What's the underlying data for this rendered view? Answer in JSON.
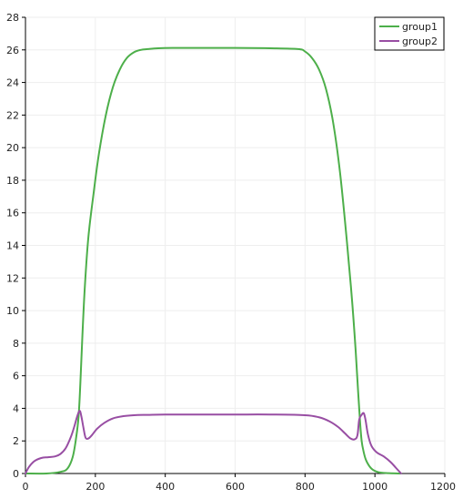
{
  "chart_data": {
    "type": "line",
    "title": "",
    "xlabel": "",
    "ylabel": "",
    "xlim": [
      0,
      1200
    ],
    "ylim": [
      0,
      28
    ],
    "x_ticks": [
      0,
      200,
      400,
      600,
      800,
      1000,
      1200
    ],
    "y_ticks": [
      0,
      2,
      4,
      6,
      8,
      10,
      12,
      14,
      16,
      18,
      20,
      22,
      24,
      26,
      28
    ],
    "x_tick_labels": [
      "0",
      "200",
      "400",
      "600",
      "800",
      "1000",
      "1200"
    ],
    "y_tick_labels": [
      "0",
      "2",
      "4",
      "6",
      "8",
      "10",
      "12",
      "14",
      "16",
      "18",
      "20",
      "22",
      "24",
      "26",
      "28"
    ],
    "grid": true,
    "legend_position": "top-right",
    "series": [
      {
        "name": "group1",
        "color": "#4daf4a",
        "x": [
          0,
          60,
          100,
          120,
          135,
          145,
          152,
          157,
          163,
          170,
          180,
          195,
          210,
          230,
          250,
          270,
          290,
          310,
          330,
          350,
          380,
          420,
          500,
          600,
          700,
          780,
          800,
          820,
          840,
          860,
          880,
          900,
          920,
          935,
          945,
          952,
          958,
          962,
          967,
          975,
          990,
          1010,
          1040,
          1075
        ],
        "y": [
          0,
          0,
          0.1,
          0.3,
          1.0,
          2.2,
          3.5,
          5.5,
          8.5,
          11.5,
          14.5,
          17.2,
          19.6,
          22.0,
          23.7,
          24.8,
          25.5,
          25.85,
          26.0,
          26.05,
          26.1,
          26.12,
          26.12,
          26.12,
          26.1,
          26.05,
          25.9,
          25.5,
          24.8,
          23.6,
          21.6,
          18.5,
          14.2,
          10.5,
          7.5,
          5.0,
          3.0,
          2.0,
          1.4,
          0.8,
          0.3,
          0.08,
          0.02,
          0
        ]
      },
      {
        "name": "group2",
        "color": "#984ea3",
        "x": [
          0,
          10,
          25,
          45,
          65,
          85,
          100,
          115,
          130,
          140,
          148,
          155,
          160,
          166,
          172,
          180,
          190,
          205,
          225,
          250,
          280,
          310,
          350,
          400,
          500,
          600,
          700,
          800,
          840,
          870,
          895,
          915,
          930,
          942,
          950,
          955,
          962,
          968,
          973,
          980,
          990,
          1005,
          1025,
          1045,
          1060,
          1075
        ],
        "y": [
          0,
          0.4,
          0.75,
          0.95,
          1.0,
          1.05,
          1.2,
          1.55,
          2.25,
          2.9,
          3.5,
          3.85,
          3.5,
          2.8,
          2.2,
          2.15,
          2.35,
          2.75,
          3.1,
          3.38,
          3.52,
          3.58,
          3.6,
          3.62,
          3.62,
          3.62,
          3.62,
          3.58,
          3.45,
          3.2,
          2.85,
          2.45,
          2.15,
          2.1,
          2.35,
          3.3,
          3.6,
          3.7,
          3.3,
          2.4,
          1.7,
          1.3,
          1.05,
          0.7,
          0.35,
          0
        ]
      }
    ]
  }
}
